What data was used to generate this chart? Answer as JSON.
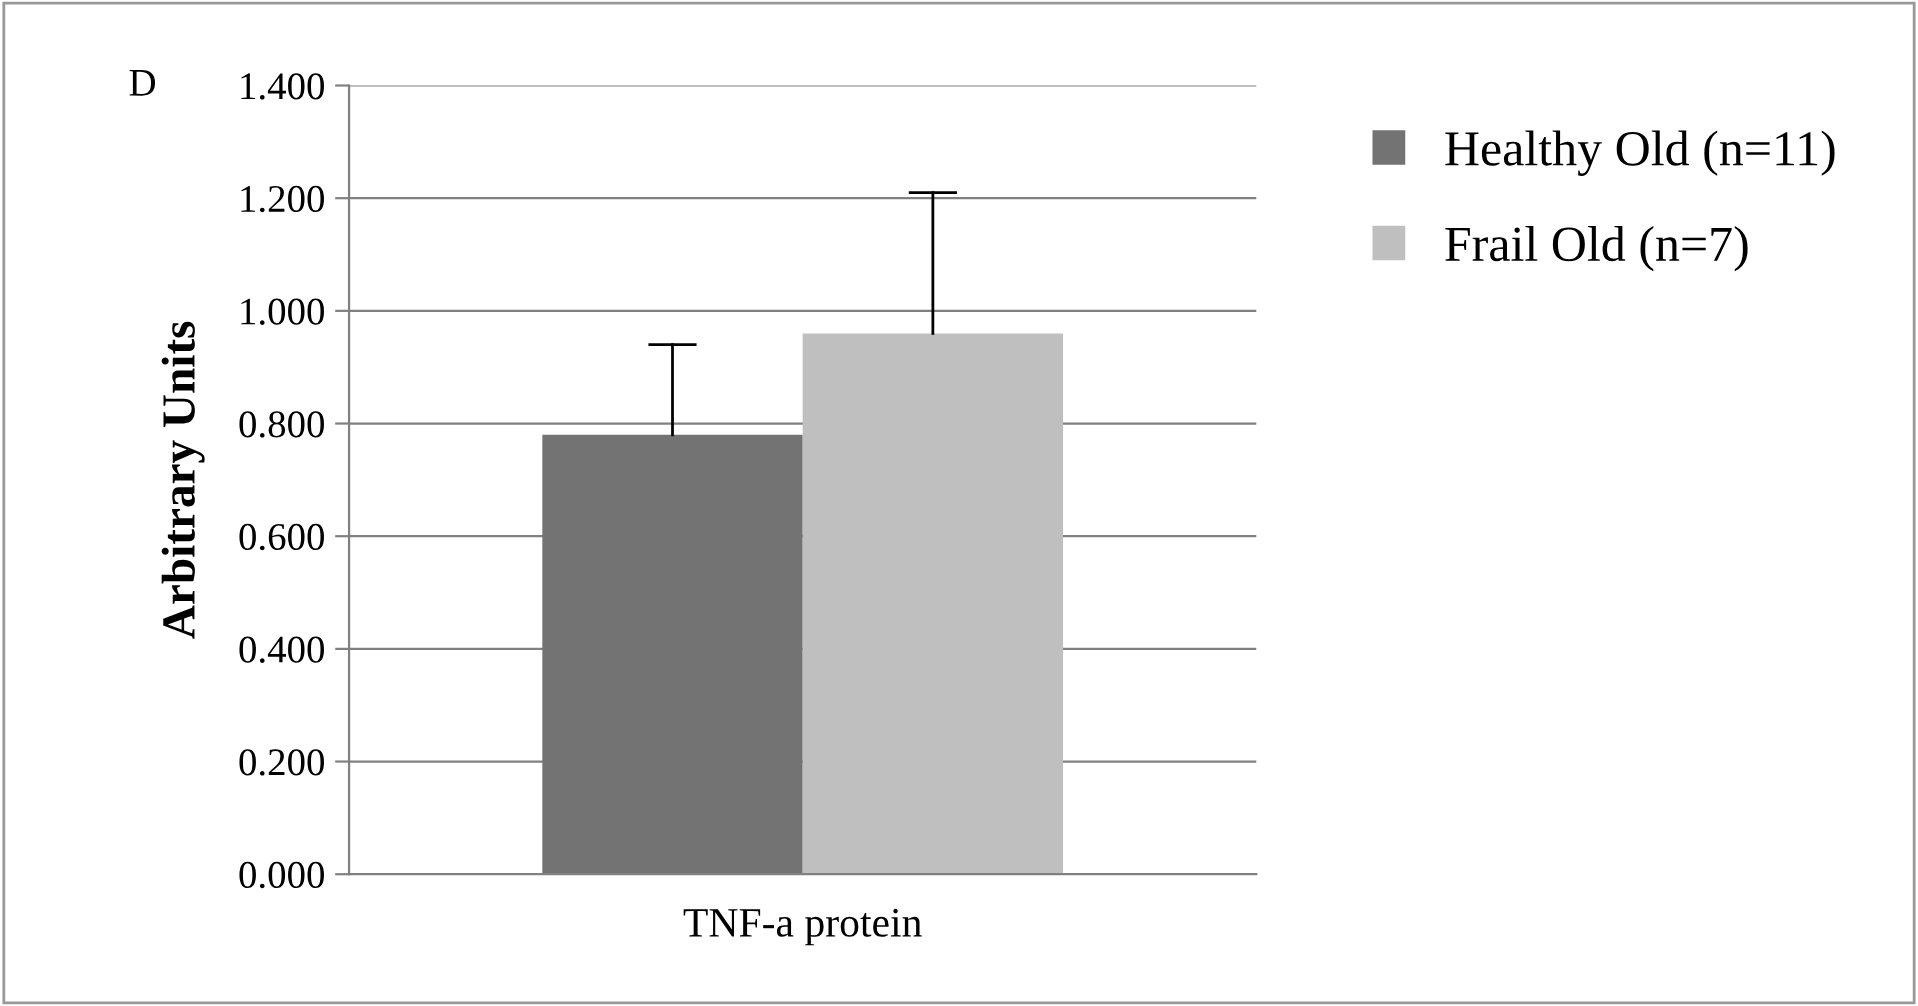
{
  "chart_data": {
    "type": "bar",
    "ylabel": "Arbitrary Units",
    "annotations": [
      "D"
    ],
    "categories": [
      "TNF-a protein"
    ],
    "series": [
      {
        "name": "Healthy Old (n=11)",
        "color": "#737373",
        "values": [
          0.78
        ],
        "errors": [
          [
            0.78,
            0.94
          ]
        ]
      },
      {
        "name": "Frail Old (n=7)",
        "color": "#bfbfbf",
        "values": [
          0.96
        ],
        "errors": [
          [
            0.96,
            1.21
          ]
        ]
      }
    ],
    "ylim": [
      0,
      1.4
    ],
    "yticks": [
      {
        "value": 0,
        "label": "0.000"
      },
      {
        "value": 0.2,
        "label": "0.200"
      },
      {
        "value": 0.4,
        "label": "0.400"
      },
      {
        "value": 0.6,
        "label": "0.600"
      },
      {
        "value": 0.8,
        "label": "0.800"
      },
      {
        "value": 1.0,
        "label": "1.000"
      },
      {
        "value": 1.2,
        "label": "1.200"
      },
      {
        "value": 1.4,
        "label": "1.400"
      }
    ],
    "grid": "y",
    "legend": "top right"
  }
}
